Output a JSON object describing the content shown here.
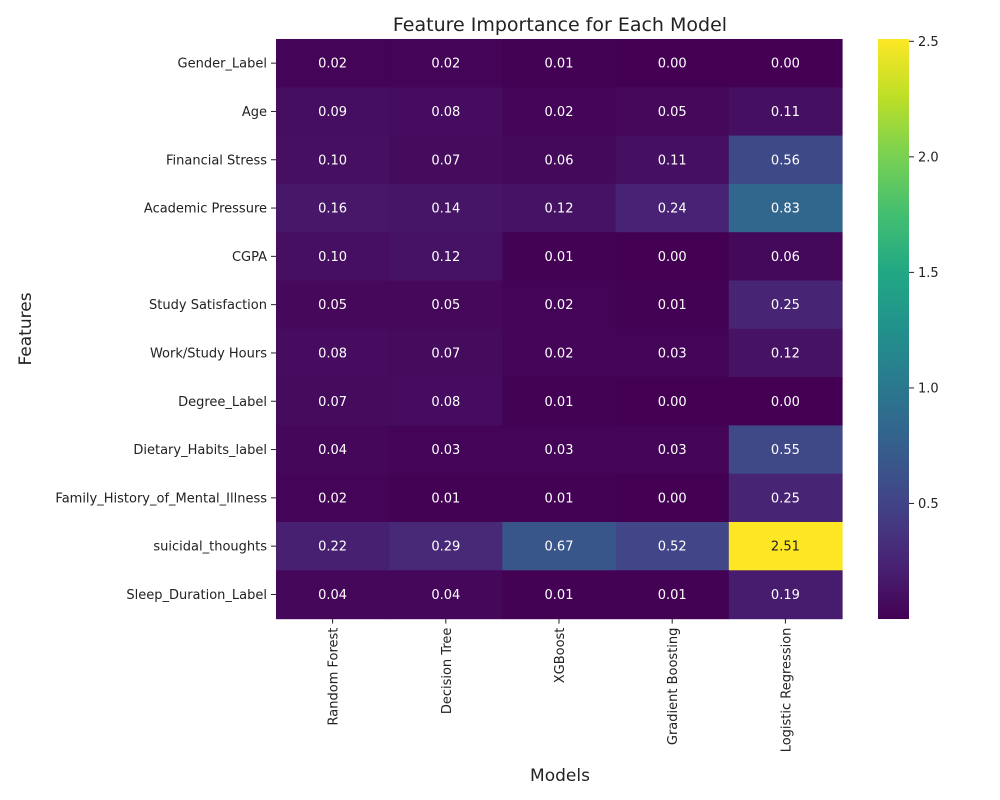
{
  "chart_data": {
    "type": "heatmap",
    "title": "Feature Importance for Each Model",
    "xlabel": "Models",
    "ylabel": "Features",
    "x": [
      "Random Forest",
      "Decision Tree",
      "XGBoost",
      "Gradient Boosting",
      "Logistic Regression"
    ],
    "y": [
      "Gender_Label",
      "Age",
      "Financial Stress",
      "Academic Pressure",
      "CGPA",
      "Study Satisfaction",
      "Work/Study Hours",
      "Degree_Label",
      "Dietary_Habits_label",
      "Family_History_of_Mental_Illness",
      "suicidal_thoughts",
      "Sleep_Duration_Label"
    ],
    "values": [
      [
        0.02,
        0.02,
        0.01,
        0.0,
        0.0
      ],
      [
        0.09,
        0.08,
        0.02,
        0.05,
        0.11
      ],
      [
        0.1,
        0.07,
        0.06,
        0.11,
        0.56
      ],
      [
        0.16,
        0.14,
        0.12,
        0.24,
        0.83
      ],
      [
        0.1,
        0.12,
        0.01,
        0.0,
        0.06
      ],
      [
        0.05,
        0.05,
        0.02,
        0.01,
        0.25
      ],
      [
        0.08,
        0.07,
        0.02,
        0.03,
        0.12
      ],
      [
        0.07,
        0.08,
        0.01,
        0.0,
        0.0
      ],
      [
        0.04,
        0.03,
        0.03,
        0.03,
        0.55
      ],
      [
        0.02,
        0.01,
        0.01,
        0.0,
        0.25
      ],
      [
        0.22,
        0.29,
        0.67,
        0.52,
        2.51
      ],
      [
        0.04,
        0.04,
        0.01,
        0.01,
        0.19
      ]
    ],
    "colormap": "viridis",
    "vmin": 0,
    "vmax": 2.51,
    "colorbar_ticks": [
      0.5,
      1.0,
      1.5,
      2.0,
      2.5
    ],
    "colorbar_tick_labels": [
      "0.5",
      "1.0",
      "1.5",
      "2.0",
      "2.5"
    ],
    "annotation_format": "2 decimals",
    "grid": false,
    "legend": "colorbar-right"
  }
}
